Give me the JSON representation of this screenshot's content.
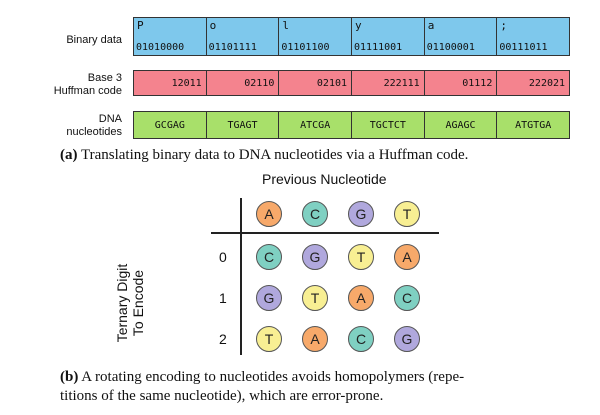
{
  "part_a": {
    "labels": {
      "binary": "Binary data",
      "huffman": [
        "Base 3",
        "Huffman code"
      ],
      "dna": [
        "DNA",
        "nucleotides"
      ]
    },
    "binary_cells": [
      {
        "char": "P",
        "bits": "01010000"
      },
      {
        "char": "o",
        "bits": "01101111"
      },
      {
        "char": "l",
        "bits": "01101100"
      },
      {
        "char": "y",
        "bits": "01111001"
      },
      {
        "char": "a",
        "bits": "01100001"
      },
      {
        "char": ";",
        "bits": "00111011"
      }
    ],
    "huffman_cells": [
      "12011",
      "02110",
      "02101",
      "222111",
      "01112",
      "222021"
    ],
    "dna_cells": [
      "GCGAG",
      "TGAGT",
      "ATCGA",
      "TGCTCT",
      "AGAGC",
      "ATGTGA"
    ],
    "caption_label": "(a)",
    "caption_text": "Translating binary data to DNA nucleotides via a Huffman code."
  },
  "part_b": {
    "column_title": "Previous Nucleotide",
    "row_title": [
      "Ternary Digit",
      "To Encode"
    ],
    "header_nucleotides": [
      "A",
      "C",
      "G",
      "T"
    ],
    "row_digits": [
      "0",
      "1",
      "2"
    ],
    "grid": [
      [
        "C",
        "G",
        "T",
        "A"
      ],
      [
        "G",
        "T",
        "A",
        "C"
      ],
      [
        "T",
        "A",
        "C",
        "G"
      ]
    ],
    "colors": {
      "A": "#f7a96a",
      "C": "#7fd0c2",
      "G": "#b0a8dd",
      "T": "#f8ef93"
    },
    "caption_label": "(b)",
    "caption_line1": "A rotating encoding to nucleotides avoids homopolymers (repe-",
    "caption_line2": "titions of the same nucleotide), which are error-prone."
  }
}
